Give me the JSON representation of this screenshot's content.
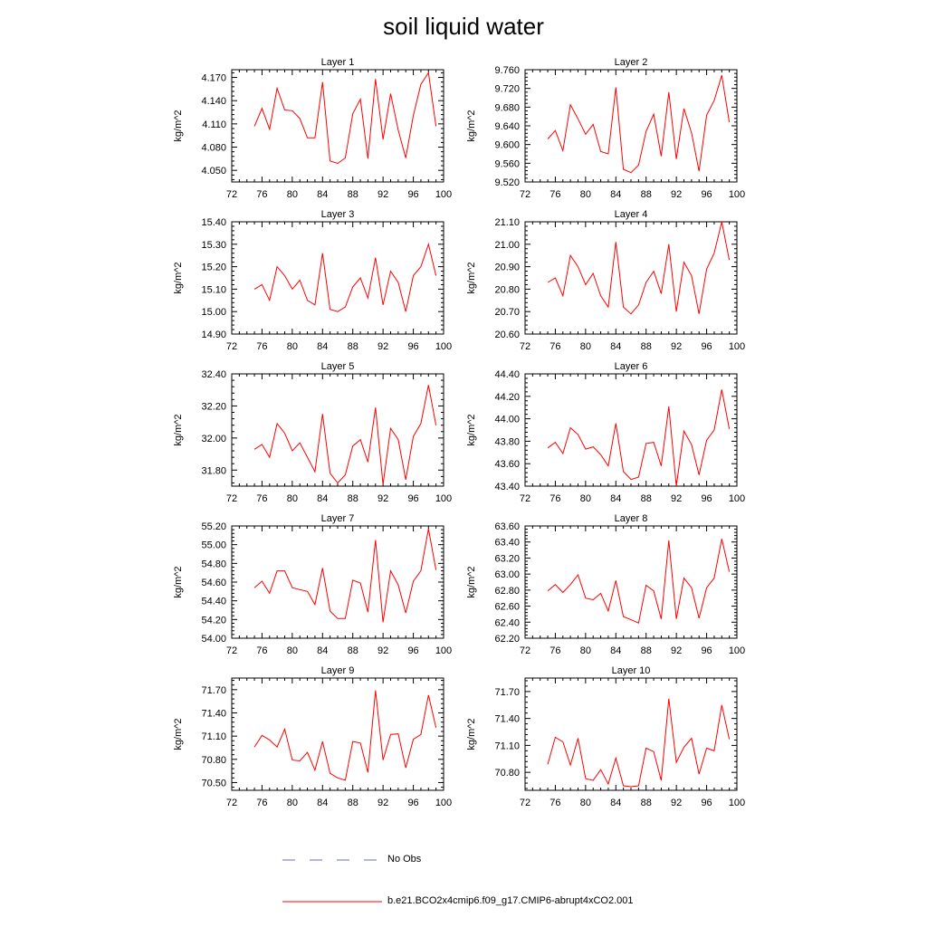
{
  "title": "soil liquid water",
  "legend": {
    "obs_label": "No Obs",
    "obs_color": "#6a6ad0",
    "model_label": "b.e21.BCO2x4cmip6.f09_g17.CMIP6-abrupt4xCO2.001",
    "model_color": "#ff0000"
  },
  "chart_data": [
    {
      "type": "line",
      "title": "Layer 1",
      "ylabel": "kg/m^2",
      "xlim": [
        72,
        100
      ],
      "ylim": [
        4.035,
        4.18
      ],
      "xticks": [
        72,
        76,
        80,
        84,
        88,
        92,
        96,
        100
      ],
      "yticks": [
        4.05,
        4.08,
        4.11,
        4.14,
        4.17
      ],
      "ytick_labels": [
        "4.050",
        "4.080",
        "4.110",
        "4.140",
        "4.170"
      ],
      "series": [
        {
          "x": [
            75,
            76,
            77,
            78,
            79,
            80,
            81,
            82,
            83,
            84,
            85,
            86,
            87,
            88,
            89,
            90,
            91,
            92,
            93,
            94,
            95,
            96,
            97,
            98,
            99
          ],
          "values": [
            4.107,
            4.13,
            4.103,
            4.156,
            4.128,
            4.127,
            4.117,
            4.092,
            4.092,
            4.164,
            4.062,
            4.059,
            4.066,
            4.123,
            4.142,
            4.065,
            4.168,
            4.09,
            4.149,
            4.102,
            4.066,
            4.121,
            4.161,
            4.176,
            4.107
          ]
        }
      ]
    },
    {
      "type": "line",
      "title": "Layer 2",
      "ylabel": "kg/m^2",
      "xlim": [
        72,
        100
      ],
      "ylim": [
        9.52,
        9.76
      ],
      "xticks": [
        72,
        76,
        80,
        84,
        88,
        92,
        96,
        100
      ],
      "yticks": [
        9.52,
        9.56,
        9.6,
        9.64,
        9.68,
        9.72,
        9.76
      ],
      "ytick_labels": [
        "9.520",
        "9.560",
        "9.600",
        "9.640",
        "9.680",
        "9.720",
        "9.760"
      ],
      "series": [
        {
          "x": [
            75,
            76,
            77,
            78,
            79,
            80,
            81,
            82,
            83,
            84,
            85,
            86,
            87,
            88,
            89,
            90,
            91,
            92,
            93,
            94,
            95,
            96,
            97,
            98,
            99
          ],
          "values": [
            9.612,
            9.63,
            9.587,
            9.685,
            9.655,
            9.622,
            9.643,
            9.585,
            9.58,
            9.722,
            9.547,
            9.54,
            9.556,
            9.628,
            9.665,
            9.575,
            9.712,
            9.569,
            9.677,
            9.625,
            9.543,
            9.663,
            9.694,
            9.748,
            9.648
          ]
        }
      ]
    },
    {
      "type": "line",
      "title": "Layer 3",
      "ylabel": "kg/m^2",
      "xlim": [
        72,
        100
      ],
      "ylim": [
        14.9,
        15.4
      ],
      "xticks": [
        72,
        76,
        80,
        84,
        88,
        92,
        96,
        100
      ],
      "yticks": [
        14.9,
        15.0,
        15.1,
        15.2,
        15.3,
        15.4
      ],
      "ytick_labels": [
        "14.90",
        "15.00",
        "15.10",
        "15.20",
        "15.30",
        "15.40"
      ],
      "series": [
        {
          "x": [
            75,
            76,
            77,
            78,
            79,
            80,
            81,
            82,
            83,
            84,
            85,
            86,
            87,
            88,
            89,
            90,
            91,
            92,
            93,
            94,
            95,
            96,
            97,
            98,
            99
          ],
          "values": [
            15.1,
            15.12,
            15.05,
            15.2,
            15.16,
            15.1,
            15.14,
            15.05,
            15.03,
            15.26,
            15.01,
            15.0,
            15.02,
            15.11,
            15.15,
            15.06,
            15.24,
            15.03,
            15.18,
            15.13,
            15.0,
            15.16,
            15.2,
            15.3,
            15.16
          ]
        }
      ]
    },
    {
      "type": "line",
      "title": "Layer 4",
      "ylabel": "kg/m^2",
      "xlim": [
        72,
        100
      ],
      "ylim": [
        20.6,
        21.1
      ],
      "xticks": [
        72,
        76,
        80,
        84,
        88,
        92,
        96,
        100
      ],
      "yticks": [
        20.6,
        20.7,
        20.8,
        20.9,
        21.0,
        21.1
      ],
      "ytick_labels": [
        "20.60",
        "20.70",
        "20.80",
        "20.90",
        "21.00",
        "21.10"
      ],
      "series": [
        {
          "x": [
            75,
            76,
            77,
            78,
            79,
            80,
            81,
            82,
            83,
            84,
            85,
            86,
            87,
            88,
            89,
            90,
            91,
            92,
            93,
            94,
            95,
            96,
            97,
            98,
            99
          ],
          "values": [
            20.83,
            20.85,
            20.77,
            20.95,
            20.9,
            20.82,
            20.87,
            20.77,
            20.72,
            21.01,
            20.72,
            20.69,
            20.73,
            20.83,
            20.88,
            20.78,
            21.0,
            20.7,
            20.92,
            20.86,
            20.69,
            20.89,
            20.96,
            21.1,
            20.93
          ]
        }
      ]
    },
    {
      "type": "line",
      "title": "Layer 5",
      "ylabel": "kg/m^2",
      "xlim": [
        72,
        100
      ],
      "ylim": [
        31.7,
        32.4
      ],
      "xticks": [
        72,
        76,
        80,
        84,
        88,
        92,
        96,
        100
      ],
      "yticks": [
        31.8,
        32.0,
        32.2,
        32.4
      ],
      "ytick_labels": [
        "31.80",
        "32.00",
        "32.20",
        "32.40"
      ],
      "series": [
        {
          "x": [
            75,
            76,
            77,
            78,
            79,
            80,
            81,
            82,
            83,
            84,
            85,
            86,
            87,
            88,
            89,
            90,
            91,
            92,
            93,
            94,
            95,
            96,
            97,
            98,
            99
          ],
          "values": [
            31.93,
            31.96,
            31.88,
            32.09,
            32.03,
            31.92,
            31.97,
            31.88,
            31.79,
            32.15,
            31.78,
            31.72,
            31.77,
            31.95,
            31.99,
            31.85,
            32.19,
            31.71,
            32.06,
            31.99,
            31.74,
            32.01,
            32.09,
            32.33,
            32.08
          ]
        }
      ]
    },
    {
      "type": "line",
      "title": "Layer 6",
      "ylabel": "kg/m^2",
      "xlim": [
        72,
        100
      ],
      "ylim": [
        43.4,
        44.4
      ],
      "xticks": [
        72,
        76,
        80,
        84,
        88,
        92,
        96,
        100
      ],
      "yticks": [
        43.4,
        43.6,
        43.8,
        44.0,
        44.2,
        44.4
      ],
      "ytick_labels": [
        "43.40",
        "43.60",
        "43.80",
        "44.00",
        "44.20",
        "44.40"
      ],
      "series": [
        {
          "x": [
            75,
            76,
            77,
            78,
            79,
            80,
            81,
            82,
            83,
            84,
            85,
            86,
            87,
            88,
            89,
            90,
            91,
            92,
            93,
            94,
            95,
            96,
            97,
            98,
            99
          ],
          "values": [
            43.74,
            43.79,
            43.69,
            43.92,
            43.86,
            43.73,
            43.75,
            43.68,
            43.58,
            43.96,
            43.53,
            43.46,
            43.48,
            43.78,
            43.79,
            43.58,
            44.11,
            43.4,
            43.89,
            43.77,
            43.5,
            43.81,
            43.9,
            44.26,
            43.91
          ]
        }
      ]
    },
    {
      "type": "line",
      "title": "Layer 7",
      "ylabel": "kg/m^2",
      "xlim": [
        72,
        100
      ],
      "ylim": [
        54.0,
        55.2
      ],
      "xticks": [
        72,
        76,
        80,
        84,
        88,
        92,
        96,
        100
      ],
      "yticks": [
        54.0,
        54.2,
        54.4,
        54.6,
        54.8,
        55.0,
        55.2
      ],
      "ytick_labels": [
        "54.00",
        "54.20",
        "54.40",
        "54.60",
        "54.80",
        "55.00",
        "55.20"
      ],
      "series": [
        {
          "x": [
            75,
            76,
            77,
            78,
            79,
            80,
            81,
            82,
            83,
            84,
            85,
            86,
            87,
            88,
            89,
            90,
            91,
            92,
            93,
            94,
            95,
            96,
            97,
            98,
            99
          ],
          "values": [
            54.54,
            54.61,
            54.48,
            54.72,
            54.72,
            54.54,
            54.52,
            54.5,
            54.36,
            54.75,
            54.29,
            54.21,
            54.21,
            54.62,
            54.59,
            54.28,
            55.05,
            54.17,
            54.72,
            54.57,
            54.27,
            54.61,
            54.72,
            55.17,
            54.73
          ]
        }
      ]
    },
    {
      "type": "line",
      "title": "Layer 8",
      "ylabel": "kg/m^2",
      "xlim": [
        72,
        100
      ],
      "ylim": [
        62.2,
        63.6
      ],
      "xticks": [
        72,
        76,
        80,
        84,
        88,
        92,
        96,
        100
      ],
      "yticks": [
        62.2,
        62.4,
        62.6,
        62.8,
        63.0,
        63.2,
        63.4,
        63.6
      ],
      "ytick_labels": [
        "62.20",
        "62.40",
        "62.60",
        "62.80",
        "63.00",
        "63.20",
        "63.40",
        "63.60"
      ],
      "series": [
        {
          "x": [
            75,
            76,
            77,
            78,
            79,
            80,
            81,
            82,
            83,
            84,
            85,
            86,
            87,
            88,
            89,
            90,
            91,
            92,
            93,
            94,
            95,
            96,
            97,
            98,
            99
          ],
          "values": [
            62.79,
            62.87,
            62.77,
            62.87,
            62.99,
            62.7,
            62.68,
            62.76,
            62.54,
            62.92,
            62.47,
            62.43,
            62.39,
            62.86,
            62.79,
            62.44,
            63.42,
            62.44,
            62.95,
            62.83,
            62.45,
            62.83,
            62.95,
            63.44,
            63.03
          ]
        }
      ]
    },
    {
      "type": "line",
      "title": "Layer 9",
      "ylabel": "kg/m^2",
      "xlim": [
        72,
        100
      ],
      "ylim": [
        70.4,
        71.85
      ],
      "xticks": [
        72,
        76,
        80,
        84,
        88,
        92,
        96,
        100
      ],
      "yticks": [
        70.5,
        70.8,
        71.1,
        71.4,
        71.7
      ],
      "ytick_labels": [
        "70.50",
        "70.80",
        "71.10",
        "71.40",
        "71.70"
      ],
      "series": [
        {
          "x": [
            75,
            76,
            77,
            78,
            79,
            80,
            81,
            82,
            83,
            84,
            85,
            86,
            87,
            88,
            89,
            90,
            91,
            92,
            93,
            94,
            95,
            96,
            97,
            98,
            99
          ],
          "values": [
            70.96,
            71.11,
            71.05,
            70.96,
            71.19,
            70.79,
            70.78,
            70.89,
            70.66,
            71.03,
            70.62,
            70.56,
            70.53,
            71.03,
            71.01,
            70.63,
            71.69,
            70.79,
            71.12,
            71.13,
            70.69,
            71.06,
            71.12,
            71.63,
            71.21
          ]
        }
      ]
    },
    {
      "type": "line",
      "title": "Layer 10",
      "ylabel": "kg/m^2",
      "xlim": [
        72,
        100
      ],
      "ylim": [
        70.6,
        71.85
      ],
      "xticks": [
        72,
        76,
        80,
        84,
        88,
        92,
        96,
        100
      ],
      "yticks": [
        70.8,
        71.1,
        71.4,
        71.7
      ],
      "ytick_labels": [
        "70.80",
        "71.10",
        "71.40",
        "71.70"
      ],
      "series": [
        {
          "x": [
            75,
            76,
            77,
            78,
            79,
            80,
            81,
            82,
            83,
            84,
            85,
            86,
            87,
            88,
            89,
            90,
            91,
            92,
            93,
            94,
            95,
            96,
            97,
            98,
            99
          ],
          "values": [
            70.89,
            71.19,
            71.14,
            70.88,
            71.18,
            70.73,
            70.71,
            70.83,
            70.67,
            70.96,
            70.65,
            70.64,
            70.65,
            71.07,
            71.03,
            70.71,
            71.62,
            70.91,
            71.08,
            71.18,
            70.78,
            71.07,
            71.04,
            71.55,
            71.17
          ]
        }
      ]
    }
  ]
}
